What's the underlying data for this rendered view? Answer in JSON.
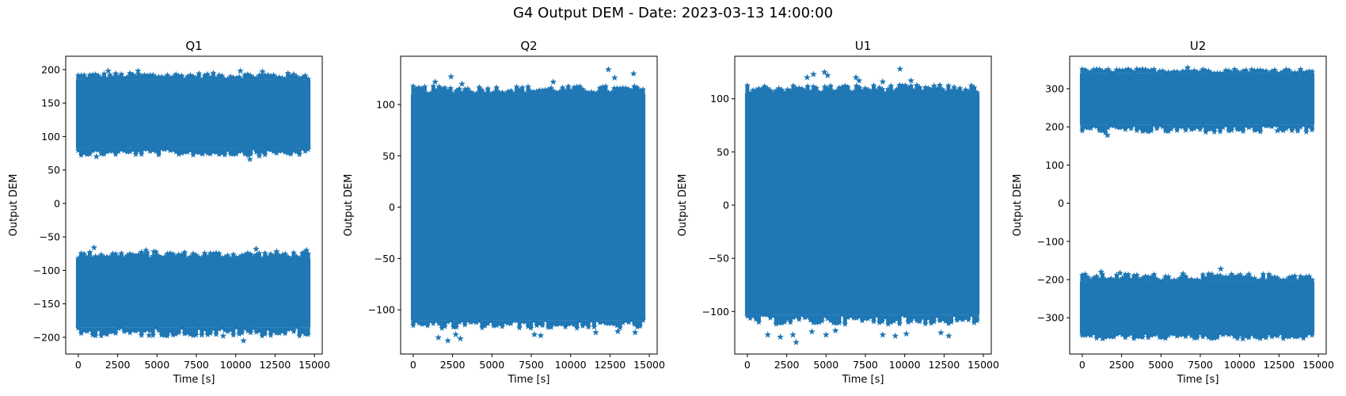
{
  "suptitle": "G4 Output DEM - Date: 2023-03-13 14:00:00",
  "colors": {
    "marker": "#1f77b4",
    "axis": "#000000",
    "background": "#ffffff"
  },
  "chart_data": [
    {
      "type": "scatter",
      "title": "Q1",
      "xlabel": "Time [s]",
      "ylabel": "Output DEM",
      "marker": "star",
      "xlim": [
        -800,
        15500
      ],
      "ylim": [
        -225,
        220
      ],
      "xticks": [
        0,
        2500,
        5000,
        7500,
        10000,
        12500,
        15000
      ],
      "yticks": [
        -200,
        -150,
        -100,
        -50,
        0,
        50,
        100,
        150,
        200
      ],
      "x_range": [
        0,
        14600
      ],
      "bands": [
        {
          "center": 132,
          "core_low": 82,
          "core_high": 185,
          "outer_low": 72,
          "outer_high": 195
        },
        {
          "center": -135,
          "core_low": -185,
          "core_high": -83,
          "outer_low": -198,
          "outer_high": -72
        }
      ],
      "outliers": [
        [
          1900,
          198
        ],
        [
          3800,
          198
        ],
        [
          10300,
          198
        ],
        [
          11700,
          197
        ],
        [
          1150,
          70
        ],
        [
          10900,
          66
        ],
        [
          11500,
          71
        ],
        [
          7900,
          74
        ],
        [
          1000,
          -66
        ],
        [
          4300,
          -70
        ],
        [
          4800,
          -72
        ],
        [
          11300,
          -68
        ],
        [
          12600,
          -72
        ],
        [
          14500,
          -70
        ],
        [
          10500,
          -205
        ],
        [
          9200,
          -198
        ],
        [
          4500,
          -197
        ]
      ]
    },
    {
      "type": "scatter",
      "title": "Q2",
      "xlabel": "Time [s]",
      "ylabel": "Output DEM",
      "marker": "star",
      "xlim": [
        -800,
        15500
      ],
      "ylim": [
        -143,
        147
      ],
      "xticks": [
        0,
        2500,
        5000,
        7500,
        10000,
        12500,
        15000
      ],
      "yticks": [
        -100,
        -50,
        0,
        50,
        100
      ],
      "x_range": [
        0,
        14600
      ],
      "bands": [
        {
          "center": 0,
          "core_low": -110,
          "core_high": 110,
          "outer_low": -118,
          "outer_high": 118
        }
      ],
      "outliers": [
        [
          1400,
          122
        ],
        [
          2400,
          127
        ],
        [
          3100,
          120
        ],
        [
          12400,
          134
        ],
        [
          14000,
          130
        ],
        [
          8900,
          122
        ],
        [
          12800,
          126
        ],
        [
          1600,
          -127
        ],
        [
          2200,
          -130
        ],
        [
          2700,
          -124
        ],
        [
          3000,
          -128
        ],
        [
          7700,
          -124
        ],
        [
          8100,
          -125
        ],
        [
          11600,
          -122
        ],
        [
          13000,
          -121
        ],
        [
          14100,
          -122
        ]
      ]
    },
    {
      "type": "scatter",
      "title": "U1",
      "xlabel": "Time [s]",
      "ylabel": "Output DEM",
      "marker": "star",
      "xlim": [
        -800,
        15500
      ],
      "ylim": [
        -140,
        140
      ],
      "xticks": [
        0,
        2500,
        5000,
        7500,
        10000,
        12500,
        15000
      ],
      "yticks": [
        -100,
        -50,
        0,
        50,
        100
      ],
      "x_range": [
        0,
        14600
      ],
      "bands": [
        {
          "center": 0,
          "core_low": -103,
          "core_high": 105,
          "outer_low": -112,
          "outer_high": 113
        }
      ],
      "outliers": [
        [
          3800,
          120
        ],
        [
          4200,
          123
        ],
        [
          4900,
          125
        ],
        [
          5100,
          122
        ],
        [
          6900,
          120
        ],
        [
          7100,
          117
        ],
        [
          8600,
          116
        ],
        [
          9700,
          128
        ],
        [
          10400,
          117
        ],
        [
          1300,
          -122
        ],
        [
          2100,
          -124
        ],
        [
          2900,
          -122
        ],
        [
          3100,
          -129
        ],
        [
          4100,
          -119
        ],
        [
          5000,
          -122
        ],
        [
          5600,
          -118
        ],
        [
          8600,
          -122
        ],
        [
          9400,
          -123
        ],
        [
          10100,
          -121
        ],
        [
          12300,
          -120
        ],
        [
          12800,
          -123
        ]
      ]
    },
    {
      "type": "scatter",
      "title": "U2",
      "xlabel": "Time [s]",
      "ylabel": "Output DEM",
      "marker": "star",
      "xlim": [
        -800,
        15500
      ],
      "ylim": [
        -395,
        385
      ],
      "xticks": [
        0,
        2500,
        5000,
        7500,
        10000,
        12500,
        15000
      ],
      "yticks": [
        -300,
        -200,
        -100,
        0,
        100,
        200,
        300
      ],
      "x_range": [
        0,
        14600
      ],
      "bands": [
        {
          "center": 272,
          "core_low": 205,
          "core_high": 340,
          "outer_low": 185,
          "outer_high": 352
        },
        {
          "center": -275,
          "core_low": -340,
          "core_high": -205,
          "outer_low": -355,
          "outer_high": -185
        }
      ],
      "outliers": [
        [
          1600,
          178
        ],
        [
          6700,
          355
        ],
        [
          3800,
          350
        ],
        [
          12400,
          190
        ],
        [
          8800,
          -172
        ],
        [
          1200,
          -180
        ],
        [
          2400,
          -183
        ],
        [
          6400,
          -185
        ],
        [
          10200,
          -355
        ],
        [
          1300,
          -355
        ]
      ]
    }
  ]
}
